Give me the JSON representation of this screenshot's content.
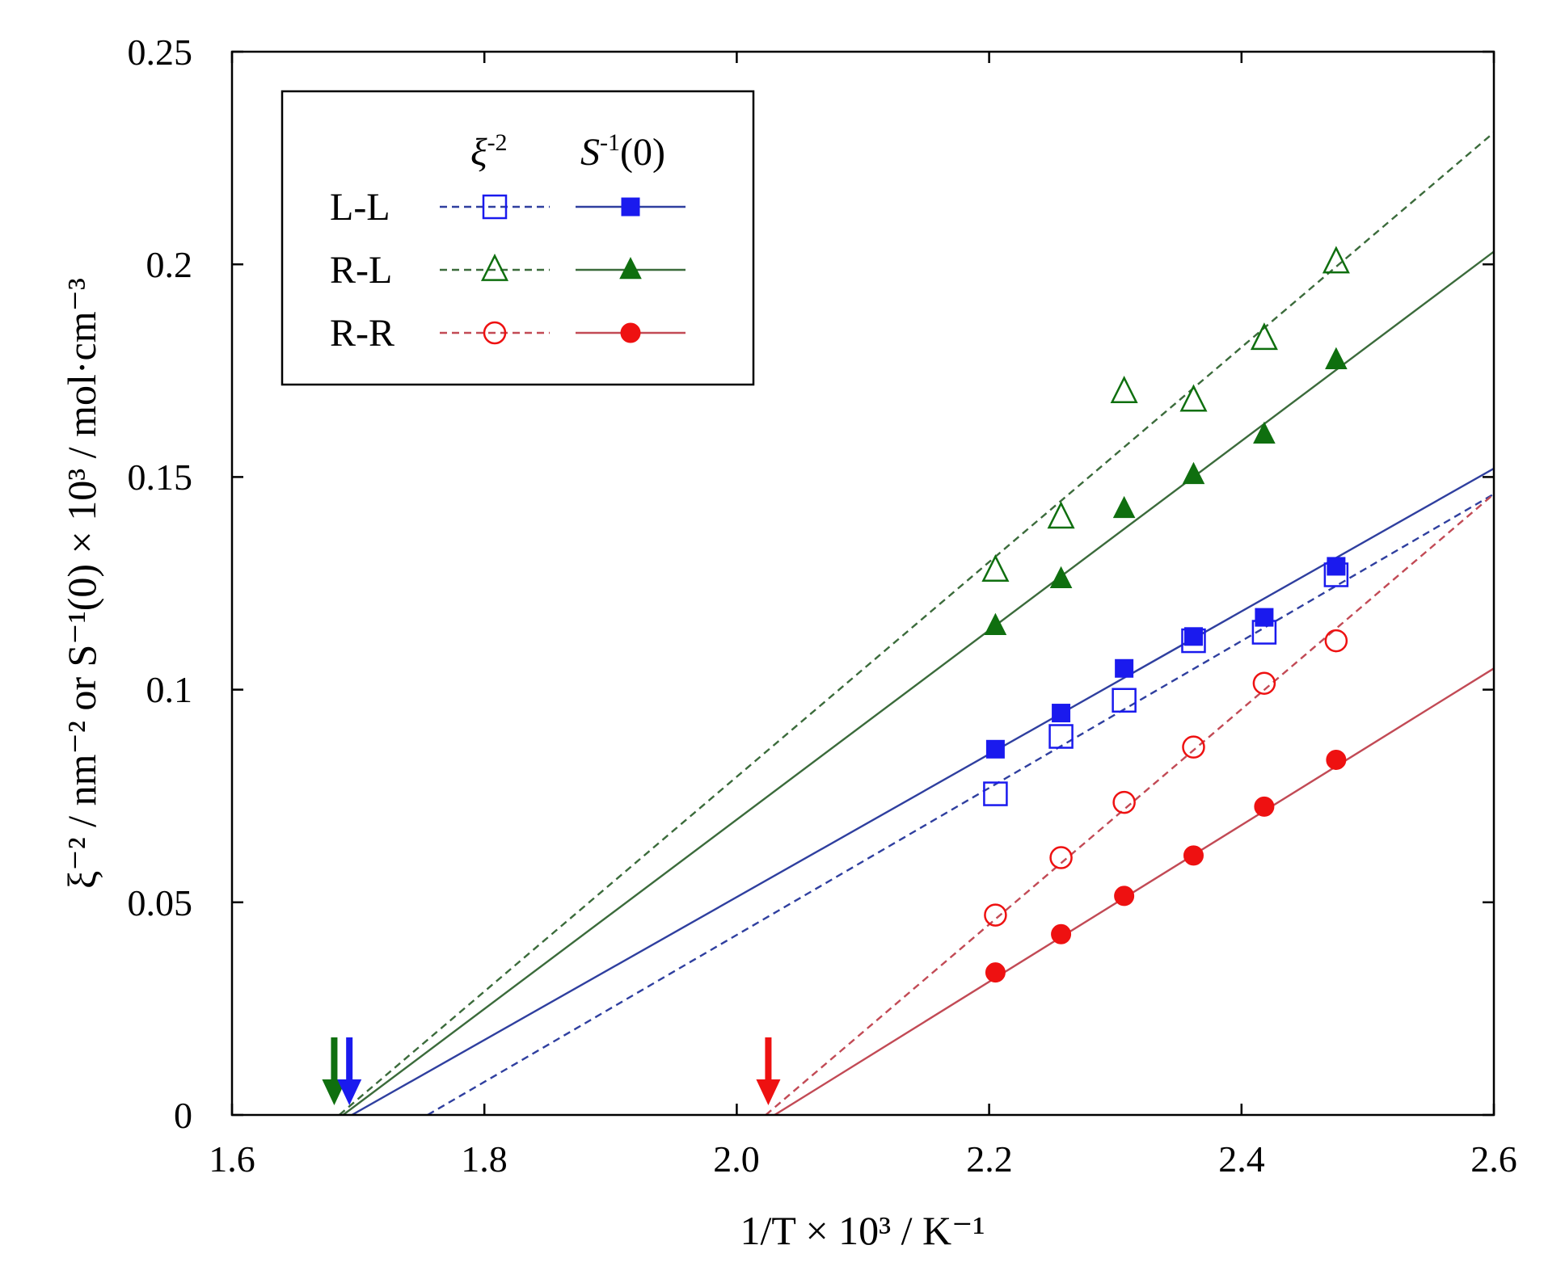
{
  "colors": {
    "blue": "#1a1aee",
    "blue_line": "#2f3f9f",
    "green": "#0f6f0f",
    "green_line": "#3b6b3b",
    "red": "#ee1111",
    "red_line": "#c24a55",
    "axis": "#000000"
  },
  "chart_data": {
    "type": "scatter",
    "title": "",
    "xlabel": "1/T × 10³ / K⁻¹",
    "ylabel": "ξ⁻² / nm⁻²  or  S⁻¹(0) × 10³ / mol·cm⁻³",
    "xlim": [
      1.6,
      2.6
    ],
    "ylim": [
      0,
      0.25
    ],
    "x_ticks": [
      "1.6",
      "1.8",
      "2.0",
      "2.2",
      "2.4",
      "2.6"
    ],
    "y_ticks": [
      "0",
      "0.05",
      "0.1",
      "0.15",
      "0.2",
      "0.25"
    ],
    "legend": {
      "position": "top-left",
      "header_xi": "ξ",
      "header_xi_exp": "-2",
      "header_s": "S",
      "header_s_exp": "-1",
      "header_s_tail": "(0)",
      "rows": [
        "L-L",
        "R-L",
        "R-R"
      ]
    },
    "series": [
      {
        "name": "L-L ξ⁻²",
        "group": "L-L",
        "color": "blue",
        "line_color": "blue_line",
        "marker": "square",
        "filled": false,
        "dash": true,
        "x": [
          2.205,
          2.257,
          2.307,
          2.362,
          2.418,
          2.475
        ],
        "y": [
          0.0755,
          0.089,
          0.0975,
          0.1115,
          0.1135,
          0.127
        ],
        "fit": [
          [
            1.755,
            0.0
          ],
          [
            2.6,
            0.146
          ]
        ]
      },
      {
        "name": "L-L S⁻¹(0)",
        "group": "L-L",
        "color": "blue",
        "line_color": "blue_line",
        "marker": "square",
        "filled": true,
        "dash": false,
        "x": [
          2.205,
          2.257,
          2.307,
          2.362,
          2.418,
          2.475
        ],
        "y": [
          0.086,
          0.0945,
          0.105,
          0.1125,
          0.117,
          0.129
        ],
        "fit": [
          [
            1.695,
            0.0
          ],
          [
            2.6,
            0.152
          ]
        ]
      },
      {
        "name": "R-L ξ⁻²",
        "group": "R-L",
        "color": "green",
        "line_color": "green_line",
        "marker": "triangle",
        "filled": false,
        "dash": true,
        "x": [
          2.205,
          2.257,
          2.307,
          2.362,
          2.418,
          2.475
        ],
        "y": [
          0.128,
          0.1405,
          0.17,
          0.168,
          0.1825,
          0.2005
        ],
        "fit": [
          [
            1.685,
            0.0
          ],
          [
            2.6,
            0.231
          ]
        ]
      },
      {
        "name": "R-L S⁻¹(0)",
        "group": "R-L",
        "color": "green",
        "line_color": "green_line",
        "marker": "triangle",
        "filled": true,
        "dash": false,
        "x": [
          2.205,
          2.257,
          2.307,
          2.362,
          2.418,
          2.475
        ],
        "y": [
          0.115,
          0.126,
          0.1425,
          0.1505,
          0.16,
          0.1775
        ],
        "fit": [
          [
            1.688,
            0.0
          ],
          [
            2.6,
            0.203
          ]
        ]
      },
      {
        "name": "R-R ξ⁻²",
        "group": "R-R",
        "color": "red",
        "line_color": "red_line",
        "marker": "circle",
        "filled": false,
        "dash": true,
        "x": [
          2.205,
          2.257,
          2.307,
          2.362,
          2.418,
          2.475
        ],
        "y": [
          0.047,
          0.0605,
          0.0735,
          0.0865,
          0.1015,
          0.1115
        ],
        "fit": [
          [
            2.023,
            0.0
          ],
          [
            2.6,
            0.146
          ]
        ]
      },
      {
        "name": "R-R S⁻¹(0)",
        "group": "R-R",
        "color": "red",
        "line_color": "red_line",
        "marker": "circle",
        "filled": true,
        "dash": false,
        "x": [
          2.205,
          2.257,
          2.307,
          2.362,
          2.418,
          2.475
        ],
        "y": [
          0.0335,
          0.0425,
          0.0515,
          0.061,
          0.0725,
          0.0835
        ],
        "fit": [
          [
            2.03,
            0.0
          ],
          [
            2.6,
            0.105
          ]
        ]
      }
    ],
    "arrows": [
      {
        "name": "green",
        "color": "green",
        "x": 1.681
      },
      {
        "name": "blue",
        "color": "blue",
        "x": 1.693
      },
      {
        "name": "red",
        "color": "red",
        "x": 2.025
      }
    ]
  }
}
